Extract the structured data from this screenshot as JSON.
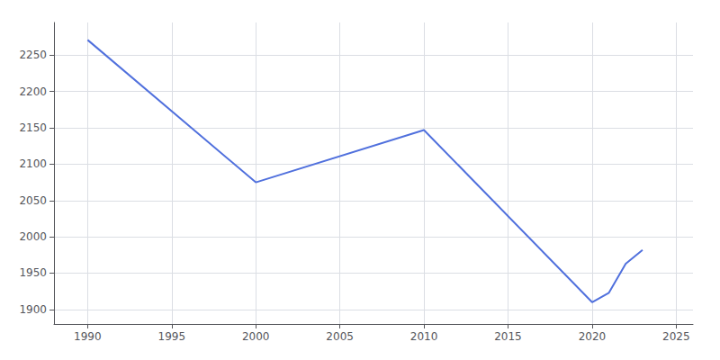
{
  "chart_data": {
    "type": "line",
    "x": [
      1990,
      2000,
      2010,
      2020,
      2021,
      2022,
      2023
    ],
    "values": [
      2271,
      2075,
      2147,
      1910,
      1923,
      1963,
      1982
    ],
    "xlim": [
      1988,
      2026
    ],
    "ylim": [
      1880,
      2295
    ],
    "xticks": [
      1990,
      1995,
      2000,
      2005,
      2010,
      2015,
      2020,
      2025
    ],
    "yticks": [
      1900,
      1950,
      2000,
      2050,
      2100,
      2150,
      2200,
      2250
    ],
    "grid": true
  }
}
